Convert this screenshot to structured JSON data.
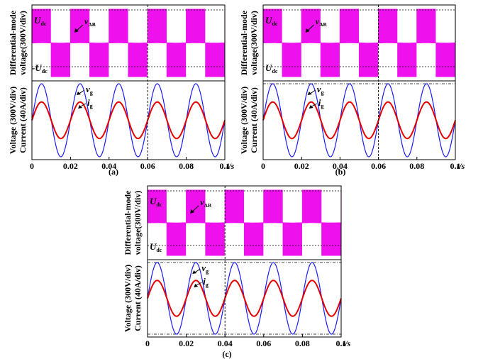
{
  "figure": {
    "colors": {
      "pwm": "#ee11ee",
      "grid_voltage": "#1a1aff",
      "grid_current": "#e60000",
      "axis": "#000000"
    }
  },
  "chart_data": [
    {
      "id": "a",
      "type": "line",
      "caption": "(a)",
      "xlabel": "t/s",
      "xlim": [
        0,
        0.1
      ],
      "xticks": [
        "0",
        "0.02",
        "0.04",
        "0.06",
        "0.08",
        "0.1"
      ],
      "top_panel": {
        "ylabel_lines": [
          "Differential-mode",
          "voltage(300V/div)"
        ],
        "labels": {
          "udc_main": "U",
          "udc_sub": "dc",
          "neg_udc_main": "-U",
          "neg_udc_sub": "dc",
          "vab_main": "v",
          "vab_sub": "AB"
        },
        "series": [
          {
            "name": "v_AB",
            "levels": [
              1,
              -1
            ],
            "fundamental_hz": 50,
            "phase_deg": 0
          }
        ]
      },
      "bottom_panel": {
        "ylabel_lines": [
          "Voltage (300V/div)",
          "Current (40A/div)"
        ],
        "labels": {
          "vg_main": "v",
          "vg_sub": "g",
          "ig_main": "i",
          "ig_sub": "g"
        },
        "series": [
          {
            "name": "v_g",
            "amplitude_div": 1.0,
            "frequency_hz": 50,
            "phase_deg": 0
          },
          {
            "name": "i_g",
            "amplitude_div": 0.5,
            "frequency_hz": 50,
            "phase_deg": 0
          }
        ]
      },
      "event_line_x": 0.06
    },
    {
      "id": "b",
      "type": "line",
      "caption": "(b)",
      "xlabel": "t/s",
      "xlim": [
        0,
        0.1
      ],
      "xticks": [
        "0",
        "0.02",
        "0.04",
        "0.06",
        "0.08",
        "0.1"
      ],
      "top_panel": {
        "ylabel_lines": [
          "Differential-mode",
          "voltage(300V/div)"
        ],
        "labels": {
          "udc_main": "U",
          "udc_sub": "dc",
          "neg_udc_main": "U",
          "neg_udc_sub": "dc",
          "vab_main": "v",
          "vab_sub": "AB"
        },
        "series": [
          {
            "name": "v_AB",
            "levels": [
              1,
              -1
            ],
            "fundamental_hz": 50,
            "phase_deg": 0
          }
        ]
      },
      "bottom_panel": {
        "ylabel_lines": [
          "Voltage (300V/div)",
          "Current (40A/div)"
        ],
        "labels": {
          "vg_main": "v",
          "vg_sub": "g",
          "ig_main": "i",
          "ig_sub": "g"
        },
        "series": [
          {
            "name": "v_g",
            "amplitude_div": 1.0,
            "frequency_hz": 50,
            "phase_deg": 0
          },
          {
            "name": "i_g",
            "amplitude_div": 0.5,
            "frequency_hz": 50,
            "phase_deg": 0
          }
        ]
      },
      "event_line_x": 0.06
    },
    {
      "id": "c",
      "type": "line",
      "caption": "(c)",
      "xlabel": "t/s",
      "xlim": [
        0,
        0.1
      ],
      "xticks": [
        "0",
        "0.02",
        "0.04",
        "0.06",
        "0.08",
        "0.1"
      ],
      "top_panel": {
        "ylabel_lines": [
          "Differential-mode",
          "voltage(300V/div)"
        ],
        "labels": {
          "udc_main": "U",
          "udc_sub": "dc",
          "neg_udc_main": "U",
          "neg_udc_sub": "dc",
          "vab_main": "v",
          "vab_sub": "AB"
        },
        "series": [
          {
            "name": "v_AB",
            "levels": [
              1,
              -1
            ],
            "fundamental_hz": 50,
            "phase_deg": 0
          }
        ]
      },
      "bottom_panel": {
        "ylabel_lines": [
          "Voltage (300V/div)",
          "Current (40A/div)"
        ],
        "labels": {
          "vg_main": "v",
          "vg_sub": "g",
          "ig_main": "i",
          "ig_sub": "g"
        },
        "series": [
          {
            "name": "v_g",
            "amplitude_div": 1.0,
            "frequency_hz": 50,
            "phase_deg": 0
          },
          {
            "name": "i_g",
            "amplitude_div": 0.5,
            "frequency_hz": 50,
            "phase_deg": 0
          }
        ]
      },
      "event_line_x": 0.04
    }
  ]
}
